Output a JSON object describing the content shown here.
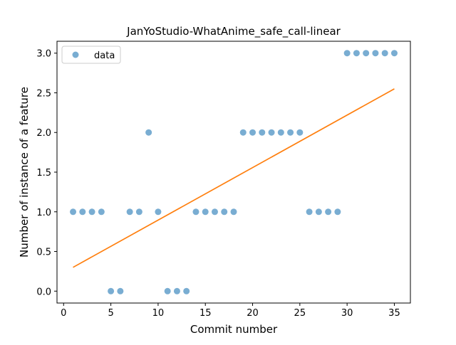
{
  "chart_data": {
    "type": "scatter",
    "title": "JanYoStudio-WhatAnime_safe_call-linear",
    "xlabel": "Commit number",
    "ylabel": "Number of instance of a feature",
    "xlim": [
      -0.7,
      36.7
    ],
    "ylim": [
      -0.15,
      3.15
    ],
    "x_ticks": [
      0,
      5,
      10,
      15,
      20,
      25,
      30,
      35
    ],
    "y_ticks": [
      0.0,
      0.5,
      1.0,
      1.5,
      2.0,
      2.5,
      3.0
    ],
    "x_tick_labels": [
      "0",
      "5",
      "10",
      "15",
      "20",
      "25",
      "30",
      "35"
    ],
    "y_tick_labels": [
      "0.0",
      "0.5",
      "1.0",
      "1.5",
      "2.0",
      "2.5",
      "3.0"
    ],
    "grid": false,
    "legend": {
      "position": "top-left",
      "entries": [
        "data"
      ]
    },
    "series": [
      {
        "name": "data",
        "kind": "scatter",
        "color": "#1f77b4",
        "x": [
          1,
          2,
          3,
          4,
          5,
          6,
          7,
          8,
          9,
          10,
          11,
          12,
          13,
          14,
          15,
          16,
          17,
          18,
          19,
          20,
          21,
          22,
          23,
          24,
          25,
          26,
          27,
          28,
          29,
          30,
          31,
          32,
          33,
          34,
          35
        ],
        "y": [
          1,
          1,
          1,
          1,
          0,
          0,
          1,
          1,
          2,
          1,
          0,
          0,
          0,
          1,
          1,
          1,
          1,
          1,
          2,
          2,
          2,
          2,
          2,
          2,
          2,
          1,
          1,
          1,
          1,
          3,
          3,
          3,
          3,
          3,
          3
        ]
      },
      {
        "kind": "line",
        "color": "#ff7f0e",
        "x": [
          1,
          35
        ],
        "y": [
          0.3,
          2.55
        ]
      }
    ]
  }
}
